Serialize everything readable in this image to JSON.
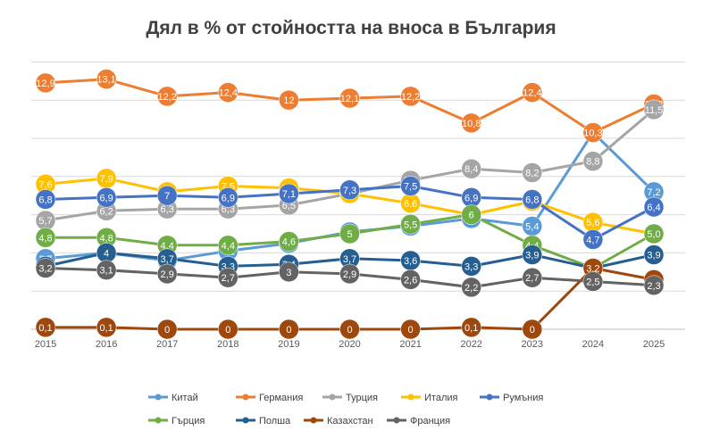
{
  "chart_data": {
    "type": "line",
    "title": "Дял в % от стойността на вноса в България",
    "xlabel": "",
    "ylabel": "",
    "ylim": [
      0,
      14.5
    ],
    "grid": true,
    "legend_position": "bottom",
    "categories": [
      "2015",
      "2016",
      "2017",
      "2018",
      "2019",
      "2020",
      "2021",
      "2022",
      "2023",
      "2024",
      "2025"
    ],
    "series": [
      {
        "name": "Китай",
        "color": "#5B9BD5",
        "values": [
          3.7,
          4.0,
          3.6,
          4.1,
          4.5,
          5.1,
          5.4,
          5.8,
          5.4,
          10.3,
          7.2
        ],
        "labels": [
          "3,7",
          "4",
          "3,6",
          "4,1",
          "4,5",
          "5,1",
          "5,4",
          "5,8",
          "5,4",
          "10,3",
          "7,2"
        ]
      },
      {
        "name": "Германия",
        "color": "#ED7D31",
        "values": [
          12.9,
          13.1,
          12.2,
          12.4,
          12.0,
          12.1,
          12.2,
          10.8,
          12.4,
          10.3,
          11.8
        ],
        "labels": [
          "12,9",
          "13,1",
          "12,2",
          "12,4",
          "12",
          "12,1",
          "12,2",
          "10,8",
          "12,4",
          "10,3",
          "11,8"
        ]
      },
      {
        "name": "Турция",
        "color": "#A5A5A5",
        "values": [
          5.7,
          6.2,
          6.3,
          6.3,
          6.5,
          7.1,
          7.8,
          8.4,
          8.2,
          8.8,
          11.5
        ],
        "labels": [
          "5,7",
          "6,2",
          "6,3",
          "6,3",
          "6,5",
          "7,1",
          "7,8",
          "8,4",
          "8,2",
          "8,8",
          "11,5"
        ]
      },
      {
        "name": "Италия",
        "color": "#FFC000",
        "values": [
          7.6,
          7.9,
          7.2,
          7.5,
          7.4,
          7.1,
          6.6,
          6.0,
          6.7,
          5.6,
          5.0
        ],
        "labels": [
          "7,6",
          "7,9",
          "7,2",
          "7,5",
          "7,4",
          "7,1",
          "6,6",
          "6",
          "6,7",
          "5,6",
          "5,0"
        ]
      },
      {
        "name": "Румъния",
        "color": "#4472C4",
        "values": [
          6.8,
          6.9,
          7.0,
          6.9,
          7.1,
          7.3,
          7.5,
          6.9,
          6.8,
          4.7,
          6.4
        ],
        "labels": [
          "6,8",
          "6,9",
          "7",
          "6,9",
          "7,1",
          "7,3",
          "7,5",
          "6,9",
          "6,8",
          "4,7",
          "6,4"
        ]
      },
      {
        "name": "Гърция",
        "color": "#70AD47",
        "values": [
          4.8,
          4.8,
          4.4,
          4.4,
          4.6,
          5.0,
          5.5,
          6.0,
          4.4,
          3.2,
          5.0
        ],
        "labels": [
          "4,8",
          "4,8",
          "4,4",
          "4,4",
          "4,6",
          "5",
          "5,5",
          "6",
          "4,4",
          "3,2",
          "5,0"
        ]
      },
      {
        "name": "Полша",
        "color": "#255E91",
        "values": [
          3.3,
          4.0,
          3.7,
          3.3,
          3.4,
          3.7,
          3.6,
          3.3,
          3.9,
          3.2,
          3.9
        ],
        "labels": [
          "3,3",
          "4",
          "3,7",
          "3,3",
          "3,4",
          "3,7",
          "3,6",
          "3,3",
          "3,9",
          "3,2",
          "3,9"
        ]
      },
      {
        "name": "Казахстан",
        "color": "#9E480E",
        "values": [
          0.1,
          0.1,
          0.0,
          0.0,
          0.0,
          0.0,
          0.0,
          0.1,
          0.0,
          3.2,
          2.6
        ],
        "labels": [
          "0,1",
          "0,1",
          "0",
          "0",
          "0",
          "0",
          "0",
          "0,1",
          "0",
          "3,2",
          "2,6"
        ]
      },
      {
        "name": "Франция",
        "color": "#636363",
        "values": [
          3.2,
          3.1,
          2.9,
          2.7,
          3.0,
          2.9,
          2.6,
          2.2,
          2.7,
          2.5,
          2.3
        ],
        "labels": [
          "3,2",
          "3,1",
          "2,9",
          "2,7",
          "3",
          "2,9",
          "2,6",
          "2,2",
          "2,7",
          "2,5",
          "2,3"
        ]
      }
    ]
  }
}
